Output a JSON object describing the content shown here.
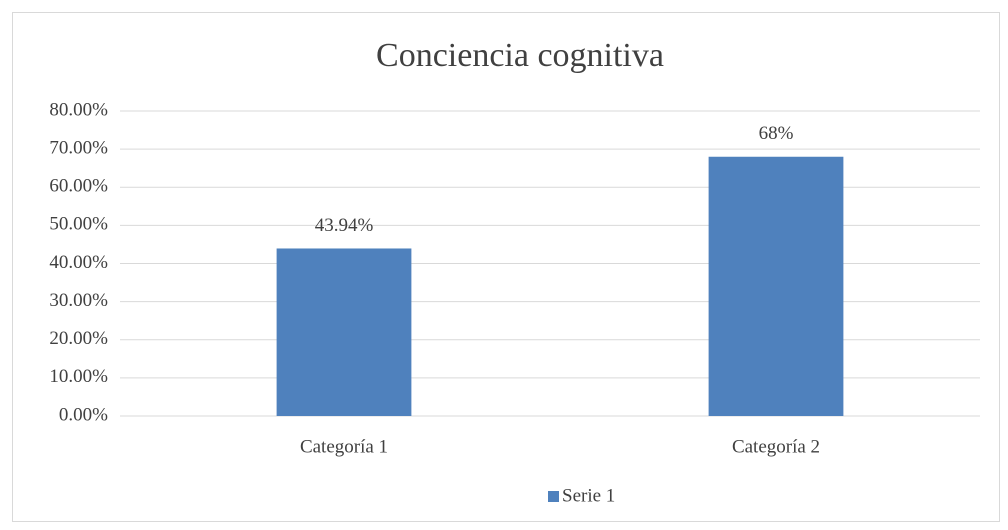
{
  "chart_data": {
    "type": "bar",
    "title": "Conciencia cognitiva",
    "categories": [
      "Categoría 1",
      "Categoría 2"
    ],
    "series": [
      {
        "name": "Serie 1",
        "color": "#4f81bd",
        "values": [
          43.94,
          68
        ],
        "value_labels": [
          "43.94%",
          "68%"
        ]
      }
    ],
    "ylim": [
      0,
      80
    ],
    "yticks": [
      {
        "value": 0,
        "label": "0.00%"
      },
      {
        "value": 10,
        "label": "10.00%"
      },
      {
        "value": 20,
        "label": "20.00%"
      },
      {
        "value": 30,
        "label": "30.00%"
      },
      {
        "value": 40,
        "label": "40.00%"
      },
      {
        "value": 50,
        "label": "50.00%"
      },
      {
        "value": 60,
        "label": "60.00%"
      },
      {
        "value": 70,
        "label": "70.00%"
      },
      {
        "value": 80,
        "label": "80.00%"
      }
    ],
    "grid": true,
    "legend": "bottom"
  }
}
